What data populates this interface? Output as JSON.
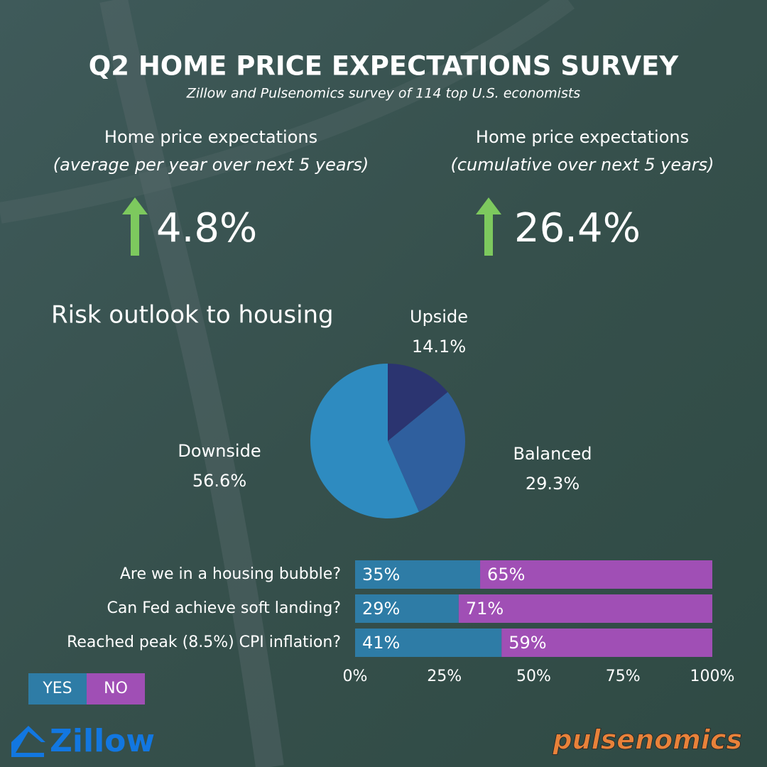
{
  "title": "Q2 HOME PRICE EXPECTATIONS SURVEY",
  "subtitle": "Zillow and Pulsenomics survey of 114 top U.S. economists",
  "stats": [
    {
      "label": "Home price expectations",
      "sublabel": "(average per year over next 5 years)",
      "value": "4.8%"
    },
    {
      "label": "Home price expectations",
      "sublabel": "(cumulative over next 5 years)",
      "value": "26.4%"
    }
  ],
  "chart_data": [
    {
      "type": "pie",
      "title": "Risk outlook to housing",
      "categories": [
        "Upside",
        "Balanced",
        "Downside"
      ],
      "values": [
        14.1,
        29.3,
        56.6
      ],
      "value_labels": [
        "14.1%",
        "29.3%",
        "56.6%"
      ],
      "colors": [
        "#2b3470",
        "#2f5f9e",
        "#2e8bc0"
      ]
    },
    {
      "type": "bar",
      "orientation": "horizontal",
      "stacked": true,
      "categories": [
        "Are we in a housing bubble?",
        "Can Fed achieve soft landing?",
        "Reached peak (8.5%) CPI inflation?"
      ],
      "series": [
        {
          "name": "YES",
          "color": "#2e7ca6",
          "values": [
            35,
            29,
            41
          ],
          "value_labels": [
            "35%",
            "29%",
            "41%"
          ]
        },
        {
          "name": "NO",
          "color": "#a04fb5",
          "values": [
            65,
            71,
            59
          ],
          "value_labels": [
            "65%",
            "71%",
            "59%"
          ]
        }
      ],
      "xlim": [
        0,
        100
      ],
      "xticks": [
        {
          "value": 0,
          "label": "0%"
        },
        {
          "value": 25,
          "label": "25%"
        },
        {
          "value": 50,
          "label": "50%"
        },
        {
          "value": 75,
          "label": "75%"
        },
        {
          "value": 100,
          "label": "100%"
        }
      ]
    }
  ],
  "logos": {
    "left": "Zillow",
    "right": "pulsenomics"
  }
}
